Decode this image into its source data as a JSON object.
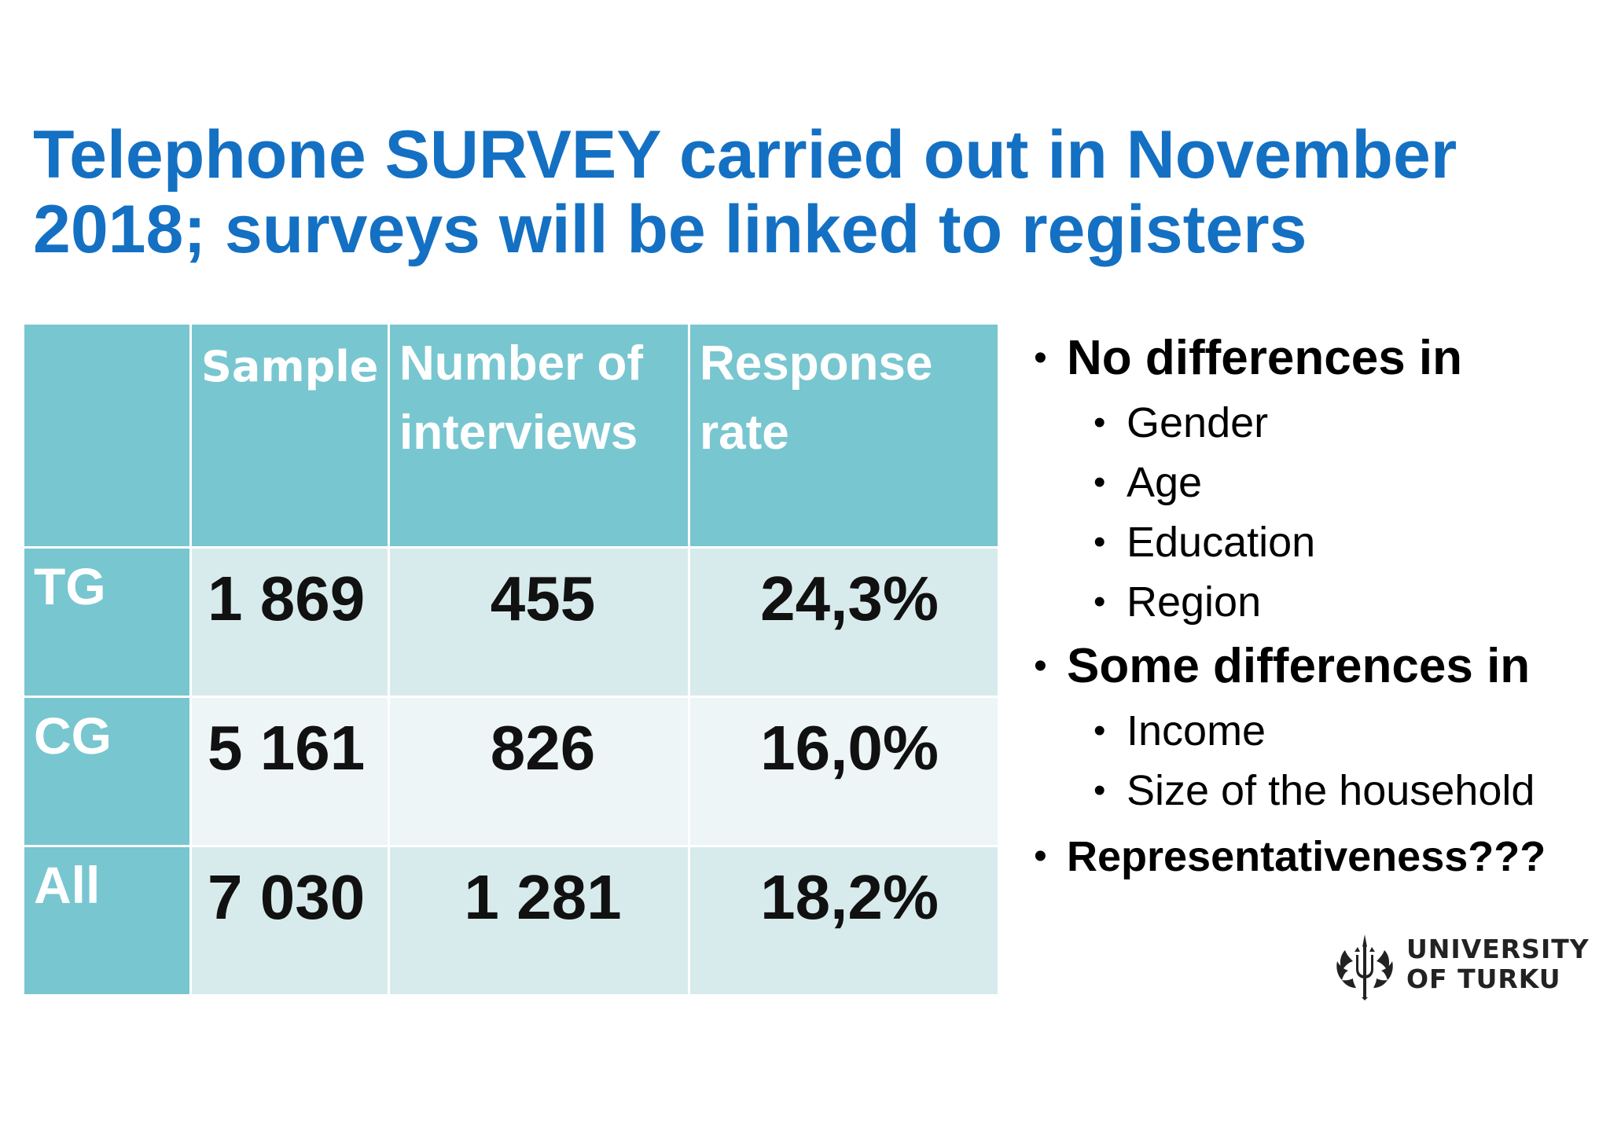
{
  "title": "Telephone SURVEY carried out in November 2018; surveys will be linked to registers",
  "table": {
    "headers": {
      "corner": "",
      "sample": "Sample",
      "interviews": "Number of interviews",
      "rate": "Response rate"
    },
    "rows": [
      {
        "label": "TG",
        "sample": "1 869",
        "interviews": "455",
        "rate": "24,3%"
      },
      {
        "label": "CG",
        "sample": "5 161",
        "interviews": "826",
        "rate": "16,0%"
      },
      {
        "label": "All",
        "sample": "7 030",
        "interviews": "1 281",
        "rate": "18,2%"
      }
    ]
  },
  "bullets": {
    "no_diff": {
      "label": "No differences in",
      "items": [
        "Gender",
        "Age",
        "Education",
        "Region"
      ]
    },
    "some_diff": {
      "label": "Some differences in",
      "items": [
        "Income",
        "Size of the household"
      ]
    },
    "representativeness": "Representativeness???"
  },
  "logo": {
    "line1": "UNIVERSITY",
    "line2": "OF TURKU"
  },
  "colors": {
    "title": "#1470C2",
    "header_bg": "#78C6D0",
    "cell_dark": "#D8EBEC",
    "cell_light": "#EDF5F6"
  },
  "icons": {
    "logo": "university-of-turku-emblem-icon",
    "bullet": "bullet-dot-icon"
  }
}
